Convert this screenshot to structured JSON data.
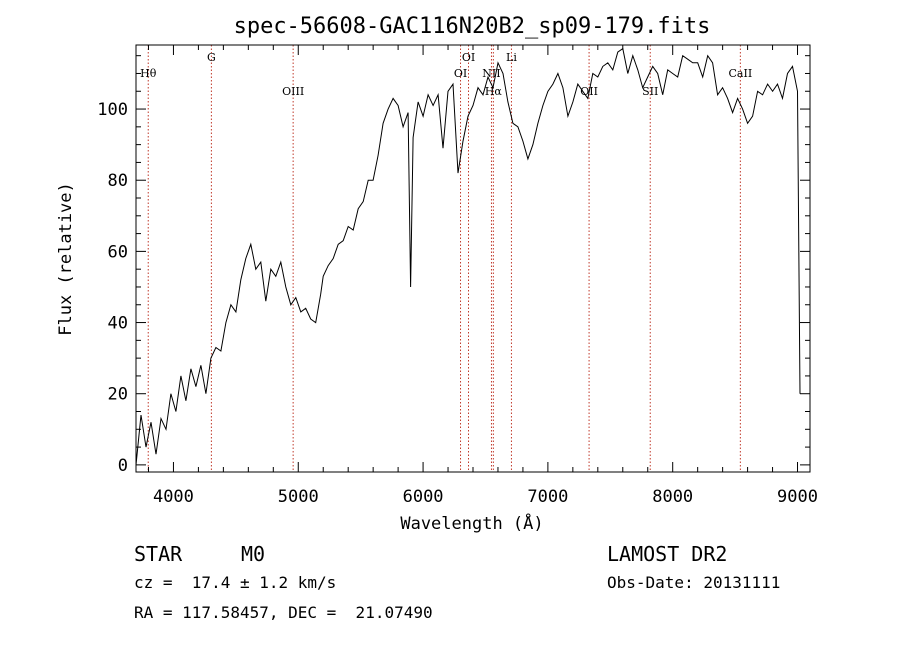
{
  "chart_data": {
    "type": "line",
    "title": "spec-56608-GAC116N20B2_sp09-179.fits",
    "xlabel": "Wavelength (Å)",
    "ylabel": "Flux (relative)",
    "xlim": [
      3700,
      9100
    ],
    "ylim": [
      -2,
      118
    ],
    "xticks": [
      4000,
      5000,
      6000,
      7000,
      8000,
      9000
    ],
    "yticks": [
      0,
      20,
      40,
      60,
      80,
      100
    ],
    "grid": false,
    "line_color": "#000000",
    "marker_color": "#c0392b",
    "lines": [
      {
        "label": "Hθ",
        "wavelength": 3798,
        "label_row": 2
      },
      {
        "label": "G",
        "wavelength": 4304,
        "label_row": 1
      },
      {
        "label": "OIII",
        "wavelength": 4959,
        "label_row": 3
      },
      {
        "label": "OI",
        "wavelength": 6300,
        "label_row": 2
      },
      {
        "label": "OI",
        "wavelength": 6364,
        "label_row": 1
      },
      {
        "label": "NII",
        "wavelength": 6548,
        "label_row": 2
      },
      {
        "label": "Hα",
        "wavelength": 6563,
        "label_row": 3
      },
      {
        "label": "Li",
        "wavelength": 6708,
        "label_row": 1
      },
      {
        "label": "OII",
        "wavelength": 7330,
        "label_row": 3
      },
      {
        "label": "SII",
        "wavelength": 7820,
        "label_row": 3
      },
      {
        "label": "CaII",
        "wavelength": 8542,
        "label_row": 2
      }
    ],
    "series": [
      {
        "x": [
          3700,
          3740,
          3780,
          3820,
          3860,
          3900,
          3940,
          3980,
          4020,
          4060,
          4100,
          4140,
          4180,
          4220,
          4260,
          4300,
          4340,
          4380,
          4420,
          4460,
          4500,
          4540,
          4580,
          4620,
          4660,
          4700,
          4740,
          4780,
          4820,
          4860,
          4900,
          4940,
          4980,
          5020,
          5060,
          5100,
          5140,
          5180,
          5200,
          5240,
          5280,
          5320,
          5360,
          5400,
          5440,
          5480,
          5520,
          5560,
          5600,
          5640,
          5680,
          5720,
          5760,
          5800,
          5840,
          5880,
          5900,
          5920,
          5960,
          6000,
          6040,
          6080,
          6120,
          6160,
          6200,
          6240,
          6280,
          6320,
          6360,
          6400,
          6440,
          6480,
          6520,
          6560,
          6600,
          6640,
          6680,
          6720,
          6760,
          6800,
          6840,
          6880,
          6920,
          6960,
          7000,
          7040,
          7080,
          7120,
          7160,
          7200,
          7240,
          7280,
          7320,
          7360,
          7400,
          7440,
          7480,
          7520,
          7560,
          7600,
          7640,
          7680,
          7720,
          7760,
          7800,
          7840,
          7880,
          7920,
          7960,
          8000,
          8040,
          8080,
          8120,
          8160,
          8200,
          8240,
          8280,
          8320,
          8360,
          8400,
          8440,
          8480,
          8520,
          8560,
          8600,
          8640,
          8680,
          8720,
          8760,
          8800,
          8840,
          8880,
          8920,
          8960,
          9000,
          9020
        ],
        "y": [
          0,
          14,
          5,
          12,
          3,
          13,
          10,
          20,
          15,
          25,
          18,
          27,
          22,
          28,
          20,
          30,
          33,
          32,
          40,
          45,
          43,
          52,
          58,
          62,
          55,
          57,
          46,
          55,
          53,
          57,
          50,
          45,
          47,
          43,
          44,
          41,
          40,
          48,
          53,
          56,
          58,
          62,
          63,
          67,
          66,
          72,
          74,
          80,
          80,
          87,
          96,
          100,
          103,
          101,
          95,
          99,
          50,
          92,
          102,
          98,
          104,
          101,
          104,
          89,
          105,
          107,
          82,
          91,
          98,
          101,
          106,
          104,
          109,
          106,
          113,
          110,
          102,
          96,
          95,
          91,
          86,
          90,
          96,
          101,
          105,
          107,
          110,
          106,
          98,
          102,
          107,
          105,
          103,
          110,
          109,
          112,
          113,
          111,
          116,
          117,
          110,
          115,
          111,
          106,
          109,
          112,
          110,
          104,
          111,
          110,
          109,
          115,
          114,
          113,
          113,
          109,
          115,
          113,
          104,
          106,
          103,
          99,
          103,
          100,
          96,
          98,
          105,
          104,
          107,
          105,
          107,
          103,
          110,
          112,
          105,
          20
        ]
      }
    ],
    "annotations": {
      "object": "STAR",
      "subclass": "M0",
      "redshift": "cz =  17.4 ± 1.2 km/s",
      "coords": "RA = 117.58457, DEC =  21.07490",
      "survey": "LAMOST DR2",
      "obsdate": "Obs-Date: 20131111"
    }
  }
}
